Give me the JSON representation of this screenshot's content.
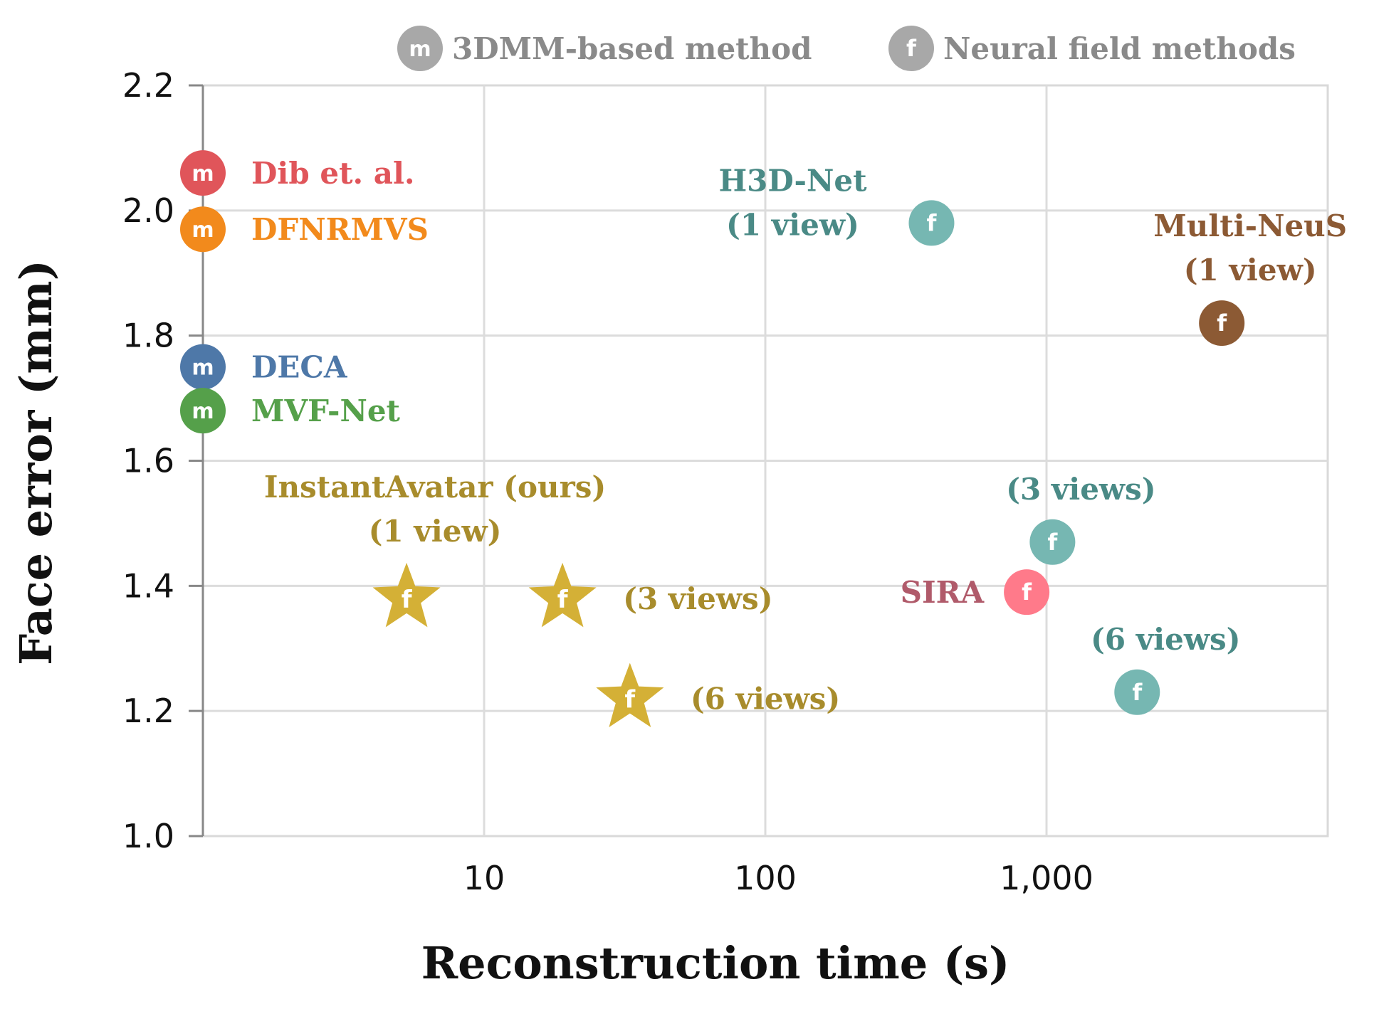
{
  "chart_data": {
    "type": "scatter",
    "xlabel": "Reconstruction time (s)",
    "ylabel": "Face error (mm)",
    "x_scale": "log",
    "xlim": [
      1,
      10000
    ],
    "ylim": [
      1.0,
      2.2
    ],
    "x_ticks": [
      {
        "value": 10,
        "label": "10"
      },
      {
        "value": 100,
        "label": "100"
      },
      {
        "value": 1000,
        "label": "1,000"
      }
    ],
    "y_ticks": [
      {
        "value": 1.0,
        "label": "1.0"
      },
      {
        "value": 1.2,
        "label": "1.2"
      },
      {
        "value": 1.4,
        "label": "1.4"
      },
      {
        "value": 1.6,
        "label": "1.6"
      },
      {
        "value": 1.8,
        "label": "1.8"
      },
      {
        "value": 2.0,
        "label": "2.0"
      },
      {
        "value": 2.2,
        "label": "2.2"
      }
    ],
    "grid": true,
    "legend": {
      "placement": "top-right",
      "color": "#a8a8a8",
      "entries": [
        {
          "glyph": "m",
          "label": "3DMM-based method"
        },
        {
          "glyph": "f",
          "label": "Neural field methods"
        }
      ]
    },
    "points": [
      {
        "id": "dib",
        "x": 1,
        "y": 2.06,
        "glyph": "m",
        "marker": "circle",
        "color": "#e0555a",
        "label_lines": [
          "Dib et. al."
        ],
        "label_pos": "right"
      },
      {
        "id": "dfnrmvs",
        "x": 1,
        "y": 1.97,
        "glyph": "m",
        "marker": "circle",
        "color": "#f28a1c",
        "label_lines": [
          "DFNRMVS"
        ],
        "label_pos": "right"
      },
      {
        "id": "deca",
        "x": 1,
        "y": 1.75,
        "glyph": "m",
        "marker": "circle",
        "color": "#4e78a8",
        "label_lines": [
          "DECA"
        ],
        "label_pos": "right"
      },
      {
        "id": "mvfnet",
        "x": 1,
        "y": 1.68,
        "glyph": "m",
        "marker": "circle",
        "color": "#55a04a",
        "label_lines": [
          "MVF-Net"
        ],
        "label_pos": "right"
      },
      {
        "id": "ia1",
        "x": 5.3,
        "y": 1.38,
        "glyph": "f",
        "marker": "star",
        "color": "#d4b036",
        "label_color": "#a88c2c",
        "label_lines": [
          "InstantAvatar (ours)",
          "(1 view)"
        ],
        "label_pos": "above"
      },
      {
        "id": "ia3",
        "x": 19,
        "y": 1.38,
        "glyph": "f",
        "marker": "star",
        "color": "#d4b036",
        "label_color": "#a88c2c",
        "label_lines": [
          "(3 views)"
        ],
        "label_pos": "right"
      },
      {
        "id": "ia6",
        "x": 33,
        "y": 1.22,
        "glyph": "f",
        "marker": "star",
        "color": "#d4b036",
        "label_color": "#a88c2c",
        "label_lines": [
          "(6 views)"
        ],
        "label_pos": "right"
      },
      {
        "id": "h3d1",
        "x": 390,
        "y": 1.98,
        "glyph": "f",
        "marker": "circle",
        "color": "#76b7b2",
        "label_color": "#4a8a86",
        "label_lines": [
          "H3D-Net",
          "(1 view)"
        ],
        "label_pos": "left-above"
      },
      {
        "id": "h3d3",
        "x": 1050,
        "y": 1.47,
        "glyph": "f",
        "marker": "circle",
        "color": "#76b7b2",
        "label_color": "#4a8a86",
        "label_lines": [
          "(3 views)"
        ],
        "label_pos": "above"
      },
      {
        "id": "h3d6",
        "x": 2100,
        "y": 1.23,
        "glyph": "f",
        "marker": "circle",
        "color": "#76b7b2",
        "label_color": "#4a8a86",
        "label_lines": [
          "(6 views)"
        ],
        "label_pos": "above"
      },
      {
        "id": "sira",
        "x": 850,
        "y": 1.39,
        "glyph": "f",
        "marker": "circle",
        "color": "#ff7a8a",
        "label_color": "#b05a6a",
        "label_lines": [
          "SIRA"
        ],
        "label_pos": "left"
      },
      {
        "id": "multineus",
        "x": 4200,
        "y": 1.82,
        "glyph": "f",
        "marker": "circle",
        "color": "#8c5a34",
        "label_lines": [
          "Multi-NeuS",
          "(1 view)"
        ],
        "label_pos": "above"
      }
    ]
  }
}
